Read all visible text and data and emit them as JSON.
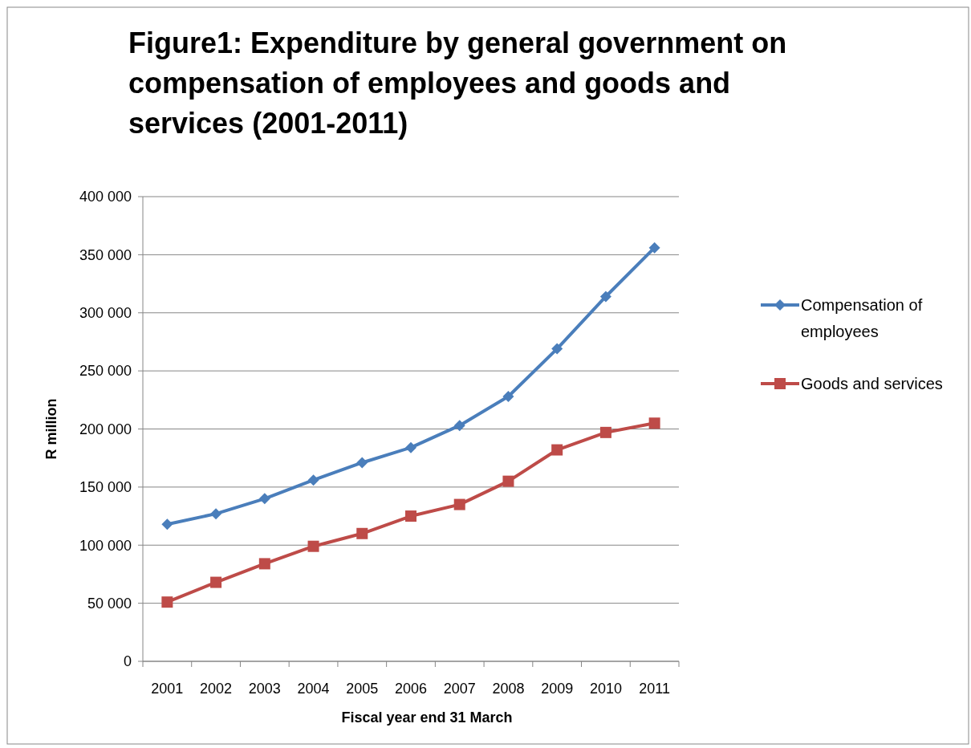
{
  "chart_data": {
    "type": "line",
    "title": "Figure1:  Expenditure by general government on compensation of employees and goods and services (2001-2011)",
    "xlabel": "Fiscal year end 31 March",
    "ylabel": "R million",
    "categories": [
      "2001",
      "2002",
      "2003",
      "2004",
      "2005",
      "2006",
      "2007",
      "2008",
      "2009",
      "2010",
      "2011"
    ],
    "series": [
      {
        "name": "Compensation of employees",
        "color": "#4a7ebb",
        "marker": "diamond",
        "values": [
          118000,
          127000,
          140000,
          156000,
          171000,
          184000,
          203000,
          228000,
          269000,
          314000,
          356000
        ]
      },
      {
        "name": "Goods and services",
        "color": "#be4b48",
        "marker": "square",
        "values": [
          51000,
          68000,
          84000,
          99000,
          110000,
          125000,
          135000,
          155000,
          182000,
          197000,
          205000
        ]
      }
    ],
    "ylim": [
      0,
      400000
    ],
    "yticks": [
      {
        "value": 0,
        "label": "0"
      },
      {
        "value": 50000,
        "label": "50 000"
      },
      {
        "value": 100000,
        "label": "100 000"
      },
      {
        "value": 150000,
        "label": "150 000"
      },
      {
        "value": 200000,
        "label": "200 000"
      },
      {
        "value": 250000,
        "label": "250 000"
      },
      {
        "value": 300000,
        "label": "300 000"
      },
      {
        "value": 350000,
        "label": "350 000"
      },
      {
        "value": 400000,
        "label": "400 000"
      }
    ],
    "grid": "y",
    "legend": "right",
    "line_style": "solid"
  }
}
